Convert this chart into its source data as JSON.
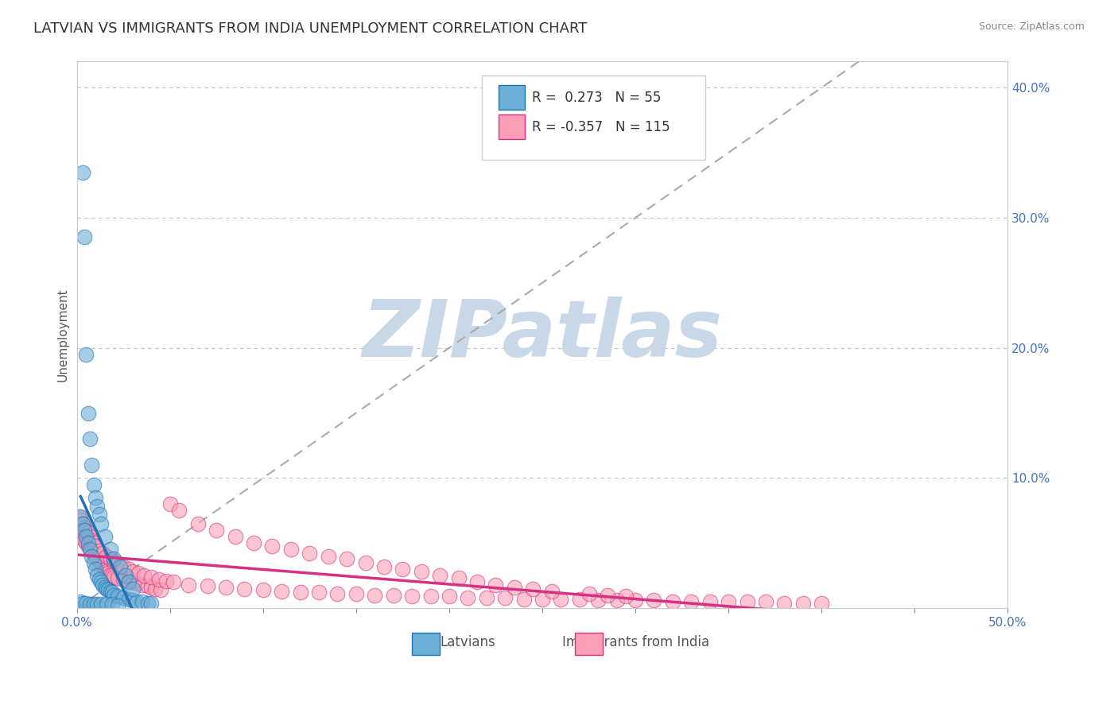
{
  "title": "LATVIAN VS IMMIGRANTS FROM INDIA UNEMPLOYMENT CORRELATION CHART",
  "source_text": "Source: ZipAtlas.com",
  "ylabel": "Unemployment",
  "xlabel": "",
  "xlim": [
    0.0,
    0.5
  ],
  "ylim": [
    0.0,
    0.42
  ],
  "xticks": [
    0.0,
    0.05,
    0.1,
    0.15,
    0.2,
    0.25,
    0.3,
    0.35,
    0.4,
    0.45,
    0.5
  ],
  "xticklabels": [
    "0.0%",
    "",
    "",
    "",
    "",
    "",
    "",
    "",
    "",
    "",
    "50.0%"
  ],
  "yticks": [
    0.0,
    0.1,
    0.2,
    0.3,
    0.4
  ],
  "yticklabels_right": [
    "",
    "10.0%",
    "20.0%",
    "30.0%",
    "40.0%"
  ],
  "latvian_R": 0.273,
  "latvian_N": 55,
  "india_R": -0.357,
  "india_N": 115,
  "latvian_color": "#6baed6",
  "india_color": "#fa9fb5",
  "latvian_line_color": "#2171b5",
  "india_line_color": "#d63083",
  "diag_line_color": "#aaaaaa",
  "watermark_text": "ZIPatlas",
  "watermark_color": "#c8d8e8",
  "background_color": "#ffffff",
  "title_fontsize": 13,
  "label_fontsize": 11,
  "tick_fontsize": 11,
  "legend_fontsize": 12,
  "latvian_scatter_x": [
    0.002,
    0.003,
    0.004,
    0.005,
    0.006,
    0.007,
    0.008,
    0.009,
    0.01,
    0.011,
    0.012,
    0.013,
    0.014,
    0.015,
    0.016,
    0.017,
    0.018,
    0.019,
    0.02,
    0.022,
    0.025,
    0.028,
    0.03,
    0.032,
    0.035,
    0.038,
    0.04,
    0.003,
    0.004,
    0.005,
    0.006,
    0.007,
    0.008,
    0.009,
    0.01,
    0.011,
    0.012,
    0.013,
    0.015,
    0.018,
    0.02,
    0.023,
    0.026,
    0.028,
    0.03,
    0.002,
    0.003,
    0.005,
    0.007,
    0.009,
    0.011,
    0.013,
    0.016,
    0.019,
    0.022
  ],
  "latvian_scatter_y": [
    0.07,
    0.065,
    0.06,
    0.055,
    0.05,
    0.045,
    0.04,
    0.035,
    0.03,
    0.025,
    0.022,
    0.02,
    0.018,
    0.016,
    0.015,
    0.014,
    0.013,
    0.012,
    0.01,
    0.009,
    0.008,
    0.007,
    0.006,
    0.005,
    0.005,
    0.004,
    0.004,
    0.335,
    0.285,
    0.195,
    0.15,
    0.13,
    0.11,
    0.095,
    0.085,
    0.078,
    0.072,
    0.065,
    0.055,
    0.045,
    0.038,
    0.032,
    0.025,
    0.02,
    0.015,
    0.005,
    0.004,
    0.004,
    0.003,
    0.003,
    0.003,
    0.003,
    0.003,
    0.003,
    0.002
  ],
  "india_scatter_x": [
    0.001,
    0.002,
    0.003,
    0.004,
    0.005,
    0.006,
    0.007,
    0.008,
    0.009,
    0.01,
    0.011,
    0.012,
    0.013,
    0.014,
    0.015,
    0.016,
    0.017,
    0.018,
    0.019,
    0.02,
    0.022,
    0.025,
    0.028,
    0.03,
    0.032,
    0.035,
    0.038,
    0.04,
    0.042,
    0.045,
    0.001,
    0.002,
    0.003,
    0.004,
    0.005,
    0.006,
    0.007,
    0.008,
    0.009,
    0.01,
    0.012,
    0.014,
    0.016,
    0.018,
    0.02,
    0.022,
    0.025,
    0.028,
    0.03,
    0.033,
    0.036,
    0.04,
    0.044,
    0.048,
    0.052,
    0.06,
    0.07,
    0.08,
    0.09,
    0.1,
    0.11,
    0.12,
    0.13,
    0.14,
    0.15,
    0.16,
    0.17,
    0.18,
    0.19,
    0.2,
    0.21,
    0.22,
    0.23,
    0.24,
    0.25,
    0.26,
    0.27,
    0.28,
    0.29,
    0.3,
    0.31,
    0.32,
    0.33,
    0.34,
    0.35,
    0.36,
    0.37,
    0.38,
    0.39,
    0.4,
    0.05,
    0.055,
    0.065,
    0.075,
    0.085,
    0.095,
    0.105,
    0.115,
    0.125,
    0.135,
    0.145,
    0.155,
    0.165,
    0.175,
    0.185,
    0.195,
    0.205,
    0.215,
    0.225,
    0.235,
    0.245,
    0.255,
    0.275,
    0.285,
    0.295
  ],
  "india_scatter_y": [
    0.06,
    0.058,
    0.055,
    0.052,
    0.05,
    0.048,
    0.046,
    0.044,
    0.042,
    0.04,
    0.038,
    0.036,
    0.034,
    0.032,
    0.03,
    0.028,
    0.027,
    0.026,
    0.025,
    0.024,
    0.023,
    0.022,
    0.021,
    0.02,
    0.019,
    0.018,
    0.017,
    0.016,
    0.015,
    0.014,
    0.07,
    0.068,
    0.065,
    0.062,
    0.06,
    0.058,
    0.055,
    0.052,
    0.05,
    0.048,
    0.044,
    0.042,
    0.04,
    0.038,
    0.036,
    0.034,
    0.032,
    0.03,
    0.028,
    0.027,
    0.025,
    0.024,
    0.022,
    0.021,
    0.02,
    0.018,
    0.017,
    0.016,
    0.015,
    0.014,
    0.013,
    0.012,
    0.012,
    0.011,
    0.011,
    0.01,
    0.01,
    0.009,
    0.009,
    0.009,
    0.008,
    0.008,
    0.008,
    0.007,
    0.007,
    0.007,
    0.007,
    0.006,
    0.006,
    0.006,
    0.006,
    0.005,
    0.005,
    0.005,
    0.005,
    0.005,
    0.005,
    0.004,
    0.004,
    0.004,
    0.08,
    0.075,
    0.065,
    0.06,
    0.055,
    0.05,
    0.048,
    0.045,
    0.042,
    0.04,
    0.038,
    0.035,
    0.032,
    0.03,
    0.028,
    0.025,
    0.023,
    0.02,
    0.018,
    0.016,
    0.015,
    0.013,
    0.011,
    0.01,
    0.009
  ]
}
